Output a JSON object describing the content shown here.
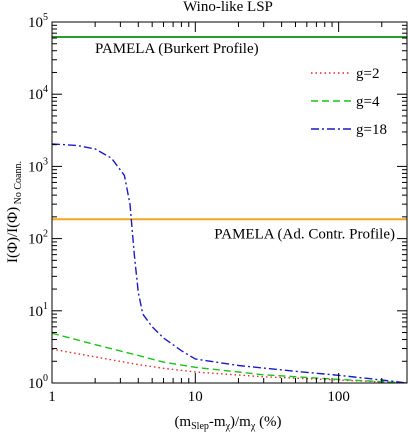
{
  "chart_data": {
    "type": "line",
    "title": "Wino-like LSP",
    "xlabel": {
      "prefix": "(m",
      "sub1": "Slep",
      "mid": "-m",
      "sub2": "χ",
      "mid2": ")/m",
      "sub3": "χ",
      "suffix": " (%)"
    },
    "ylabel": {
      "main": "I(Φ)/I(Φ)",
      "sub": " No Coann."
    },
    "x_scale": "log",
    "y_scale": "log",
    "xlim": [
      1,
      300
    ],
    "ylim": [
      1,
      100000
    ],
    "x_ticks": [
      {
        "value": 1,
        "label": "1"
      },
      {
        "value": 10,
        "label": "10"
      },
      {
        "value": 100,
        "label": "100"
      }
    ],
    "y_ticks": [
      {
        "value": 1,
        "base": "10",
        "exp": "0"
      },
      {
        "value": 10,
        "base": "10",
        "exp": "1"
      },
      {
        "value": 100,
        "base": "10",
        "exp": "2"
      },
      {
        "value": 1000,
        "base": "10",
        "exp": "3"
      },
      {
        "value": 10000,
        "base": "10",
        "exp": "4"
      },
      {
        "value": 100000,
        "base": "10",
        "exp": "5"
      }
    ],
    "series": [
      {
        "name": "g=2",
        "color": "#e8262a",
        "dash": "dotted",
        "x": [
          1,
          2,
          4,
          6,
          10,
          30,
          100,
          300
        ],
        "y": [
          2.95,
          2.3,
          1.8,
          1.6,
          1.42,
          1.22,
          1.1,
          1.0
        ]
      },
      {
        "name": "g=4",
        "color": "#18c418",
        "dash": "dashed",
        "x": [
          1,
          2,
          4,
          6,
          10,
          30,
          100,
          300
        ],
        "y": [
          4.9,
          3.4,
          2.4,
          1.95,
          1.65,
          1.3,
          1.12,
          1.0
        ]
      },
      {
        "name": "g=18",
        "color": "#1a1acc",
        "dash": "dashdot",
        "x": [
          1,
          1.5,
          2,
          2.6,
          3.2,
          3.5,
          3.75,
          4.0,
          4.3,
          5,
          6,
          8,
          10,
          20,
          50,
          100,
          200,
          300
        ],
        "y": [
          2050,
          1950,
          1750,
          1300,
          750,
          300,
          60,
          18,
          9,
          6,
          4.2,
          2.8,
          2.15,
          1.75,
          1.45,
          1.28,
          1.1,
          1.0
        ]
      }
    ],
    "reference_lines": [
      {
        "label": "PAMELA (Burkert Profile)",
        "y": 62000,
        "color": "#2d9a2d"
      },
      {
        "label": "PAMELA (Ad. Contr. Profile)",
        "y": 185,
        "color": "#f5a623"
      }
    ],
    "legend_position": "top-right",
    "grid": false
  }
}
